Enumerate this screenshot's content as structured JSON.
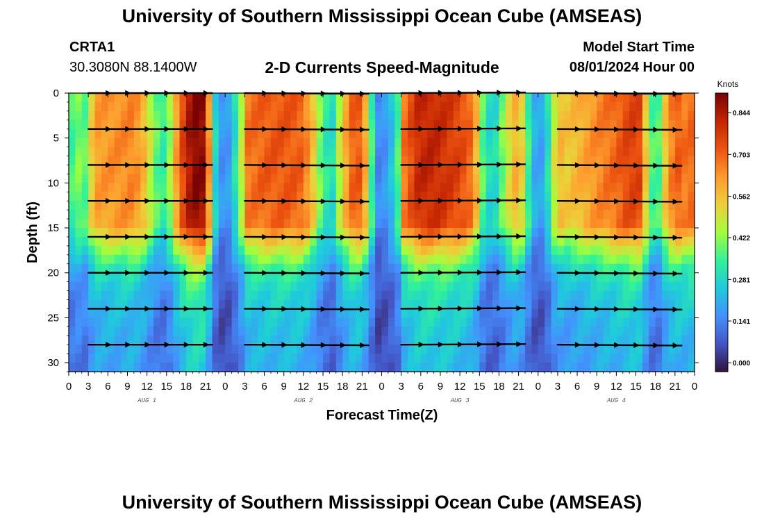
{
  "header": {
    "title": "University of Southern Mississippi Ocean Cube (AMSEAS)",
    "station_id": "CRTA1",
    "station_coords": "30.3080N  88.1400W",
    "plot_title": "2-D Currents Speed-Magnitude",
    "start_label": "Model Start Time",
    "start_value": "08/01/2024 Hour 00"
  },
  "footer": {
    "title": "University of Southern Mississippi Ocean Cube (AMSEAS)"
  },
  "chart_data": {
    "type": "heatmap",
    "title": "2-D Currents Speed-Magnitude",
    "xlabel": "Forecast Time(Z)",
    "ylabel": "Depth (ft)",
    "xlim": [
      0,
      96
    ],
    "ylim": [
      31,
      0
    ],
    "x_tick_values": [
      0,
      3,
      6,
      9,
      12,
      15,
      18,
      21,
      24,
      27,
      30,
      33,
      36,
      39,
      42,
      45,
      48,
      51,
      54,
      57,
      60,
      63,
      66,
      69,
      72,
      75,
      78,
      81,
      84,
      87,
      90,
      93,
      96
    ],
    "x_tick_labels": [
      "0",
      "3",
      "6",
      "9",
      "12",
      "15",
      "18",
      "21",
      "0",
      "3",
      "6",
      "9",
      "12",
      "15",
      "18",
      "21",
      "0",
      "3",
      "6",
      "9",
      "12",
      "15",
      "18",
      "21",
      "0",
      "3",
      "6",
      "9",
      "12",
      "15",
      "18",
      "21",
      "0"
    ],
    "y_ticks": [
      0,
      5,
      10,
      15,
      20,
      25,
      30
    ],
    "y_tick_labels": [
      "0",
      "5",
      "10",
      "15",
      "20",
      "25",
      "30"
    ],
    "day_labels": [
      {
        "label": "AUG 1",
        "hour": 12
      },
      {
        "label": "AUG 2",
        "hour": 36
      },
      {
        "label": "AUG 3",
        "hour": 60
      },
      {
        "label": "AUG 4",
        "hour": 84
      }
    ],
    "colorbar": {
      "unit": "Knots",
      "range": [
        -0.03,
        0.91
      ],
      "tick_values": [
        0.0,
        0.141,
        0.281,
        0.422,
        0.562,
        0.703,
        0.844
      ],
      "tick_labels": [
        "0.000",
        "0.141",
        "0.281",
        "0.422",
        "0.562",
        "0.703",
        "0.844"
      ],
      "colors": [
        "#30123b",
        "#4454c4",
        "#4490fe",
        "#1fc9dd",
        "#31f199",
        "#a3fd3d",
        "#ecd03a",
        "#fe9b2d",
        "#ed5410",
        "#c42503",
        "#7a0403"
      ]
    },
    "time_profile": {
      "hours": [
        0,
        1,
        2.5,
        4,
        7,
        10,
        12,
        13,
        15,
        16,
        17.5,
        19,
        21,
        22,
        23,
        24.5,
        26,
        27.5,
        31,
        34,
        36,
        37.5,
        39,
        40.5,
        42,
        43.5,
        45,
        46.5,
        47.5,
        49,
        50.5,
        51.5,
        53.5,
        55,
        57,
        60,
        62,
        63.5,
        65,
        67.5,
        69,
        70.5,
        72,
        73.5,
        75,
        76.5,
        78,
        81,
        84,
        86,
        87.5,
        88.5,
        90,
        91.5,
        93,
        94.5,
        96
      ],
      "speeds": [
        0.3,
        0.42,
        0.38,
        0.62,
        0.64,
        0.66,
        0.55,
        0.4,
        0.32,
        0.55,
        0.75,
        0.9,
        0.88,
        0.4,
        0.16,
        0.18,
        0.36,
        0.68,
        0.72,
        0.72,
        0.7,
        0.55,
        0.34,
        0.3,
        0.55,
        0.7,
        0.72,
        0.35,
        0.15,
        0.18,
        0.36,
        0.68,
        0.8,
        0.82,
        0.8,
        0.75,
        0.68,
        0.38,
        0.25,
        0.5,
        0.62,
        0.35,
        0.14,
        0.3,
        0.58,
        0.55,
        0.58,
        0.65,
        0.7,
        0.76,
        0.75,
        0.55,
        0.28,
        0.55,
        0.72,
        0.68,
        0.7
      ]
    },
    "depth_profile": {
      "depths": [
        0,
        5,
        10,
        14.5,
        17,
        19.5,
        22,
        26,
        31
      ],
      "factors": [
        1.0,
        1.0,
        1.0,
        0.97,
        0.72,
        0.5,
        0.4,
        0.34,
        0.3
      ]
    },
    "vector_depths": [
      0,
      4,
      8,
      12,
      16,
      20,
      24,
      28
    ],
    "vector_segments": [
      [
        3,
        22,
        0.0
      ],
      [
        27,
        46,
        0.3
      ],
      [
        51,
        70,
        -0.3
      ],
      [
        75,
        94,
        0.4
      ]
    ]
  }
}
